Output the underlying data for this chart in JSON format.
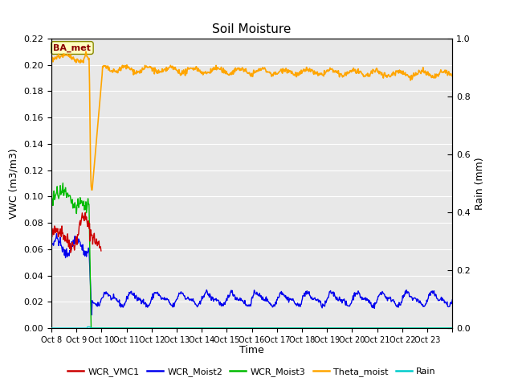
{
  "title": "Soil Moisture",
  "ylabel_left": "VWC (m3/m3)",
  "ylabel_right": "Rain (mm)",
  "xlabel": "Time",
  "ylim_left": [
    0.0,
    0.22
  ],
  "ylim_right": [
    0.0,
    1.0
  ],
  "annotation_text": "BA_met",
  "annotation_color": "#8B0000",
  "annotation_bg": "#FFFFC0",
  "annotation_edge": "#888800",
  "colors": {
    "WCR_VMC1": "#CC0000",
    "WCR_Moist2": "#0000EE",
    "WCR_Moist3": "#00BB00",
    "Theta_moist": "#FFA500",
    "Rain": "#00CCCC"
  },
  "background_color": "#E8E8E8",
  "grid_color": "#FFFFFF",
  "fig_bg": "#FFFFFF"
}
